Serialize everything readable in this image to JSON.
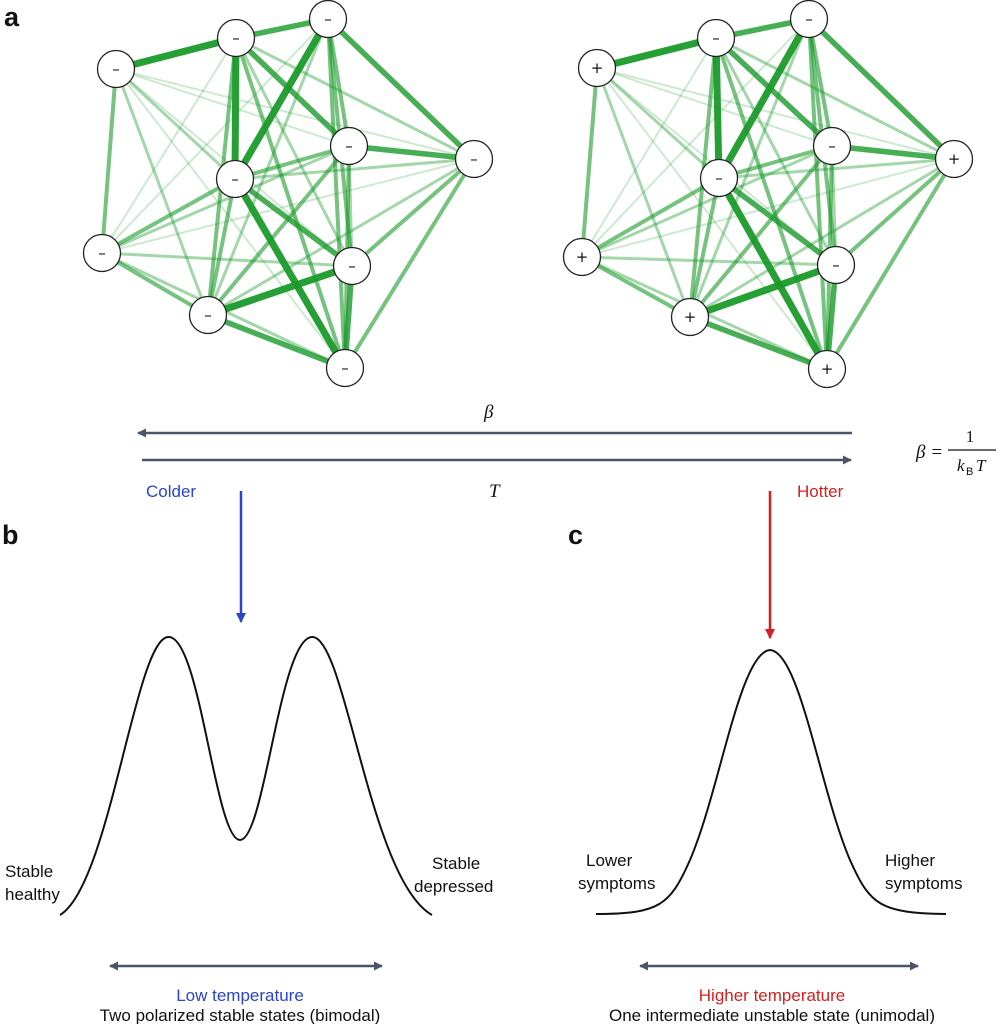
{
  "panels": {
    "a": "a",
    "b": "b",
    "c": "c"
  },
  "networks": [
    {
      "id": "left",
      "nodes": [
        {
          "id": "n1",
          "sign": "–"
        },
        {
          "id": "n2",
          "sign": "–"
        },
        {
          "id": "n3",
          "sign": "–"
        },
        {
          "id": "n4",
          "sign": "–"
        },
        {
          "id": "n5",
          "sign": "–"
        },
        {
          "id": "n6",
          "sign": "–"
        },
        {
          "id": "n7",
          "sign": "–"
        },
        {
          "id": "n8",
          "sign": "–"
        },
        {
          "id": "n9",
          "sign": "–"
        },
        {
          "id": "n10",
          "sign": "–"
        }
      ]
    },
    {
      "id": "right",
      "nodes": [
        {
          "id": "n1",
          "sign": "+"
        },
        {
          "id": "n2",
          "sign": "–"
        },
        {
          "id": "n3",
          "sign": "–"
        },
        {
          "id": "n4",
          "sign": "–"
        },
        {
          "id": "n5",
          "sign": "–"
        },
        {
          "id": "n6",
          "sign": "+"
        },
        {
          "id": "n7",
          "sign": "–"
        },
        {
          "id": "n8",
          "sign": "+"
        },
        {
          "id": "n9",
          "sign": "+"
        },
        {
          "id": "n10",
          "sign": "+"
        }
      ]
    }
  ],
  "edge_color": "#1a9a2a",
  "axis": {
    "beta_label": "β",
    "t_label": "T",
    "colder": "Colder",
    "hotter": "Hotter",
    "colder_color": "#2b44c8",
    "hotter_color": "#d42020",
    "arrow_color": "#4a5568"
  },
  "formula": {
    "lhs": "β =",
    "numerator": "1",
    "k": "k",
    "sub": "B",
    "t": "T"
  },
  "panel_b": {
    "left_label": [
      "Stable",
      "healthy"
    ],
    "right_label": [
      "Stable",
      "depressed"
    ],
    "title": "Low temperature",
    "subtitle": "Two polarized stable states (bimodal)"
  },
  "panel_c": {
    "left_label": [
      "Lower",
      "symptoms"
    ],
    "right_label": [
      "Higher",
      "symptoms"
    ],
    "title": "Higher temperature",
    "subtitle": "One intermediate unstable state (unimodal)"
  }
}
